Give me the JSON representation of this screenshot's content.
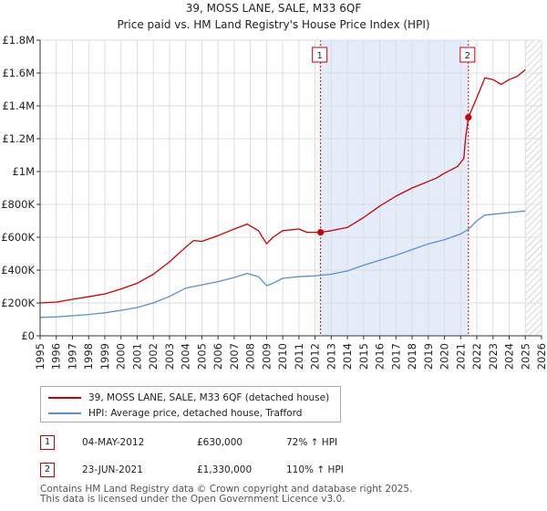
{
  "chart_data": {
    "type": "line",
    "title": "39, MOSS LANE, SALE, M33 6QF",
    "subtitle": "Price paid vs. HM Land Registry's House Price Index (HPI)",
    "xlim": [
      1995,
      2026
    ],
    "ylim": [
      0,
      1800000
    ],
    "xticks": [
      "1995",
      "1996",
      "1997",
      "1998",
      "1999",
      "2000",
      "2001",
      "2002",
      "2003",
      "2004",
      "2005",
      "2006",
      "2007",
      "2008",
      "2009",
      "2010",
      "2011",
      "2012",
      "2013",
      "2014",
      "2015",
      "2016",
      "2017",
      "2018",
      "2019",
      "2020",
      "2021",
      "2022",
      "2023",
      "2024",
      "2025",
      "2026"
    ],
    "yticks": [
      {
        "value": 0,
        "label": "£0"
      },
      {
        "value": 200000,
        "label": "£200K"
      },
      {
        "value": 400000,
        "label": "£400K"
      },
      {
        "value": 600000,
        "label": "£600K"
      },
      {
        "value": 800000,
        "label": "£800K"
      },
      {
        "value": 1000000,
        "label": "£1M"
      },
      {
        "value": 1200000,
        "label": "£1.2M"
      },
      {
        "value": 1400000,
        "label": "£1.4M"
      },
      {
        "value": 1600000,
        "label": "£1.6M"
      },
      {
        "value": 1800000,
        "label": "£1.8M"
      }
    ],
    "grid": true,
    "shaded_range": [
      2012.34,
      2021.48
    ],
    "hatched_from": 2025.0,
    "series": [
      {
        "name": "39, MOSS LANE, SALE, M33 6QF (detached house)",
        "color": "#cc0000",
        "x": [
          1995,
          1996,
          1997,
          1998,
          1999,
          2000,
          2001,
          2002,
          2003,
          2004,
          2004.5,
          2005,
          2006,
          2007,
          2007.8,
          2008.5,
          2009.0,
          2009.4,
          2010,
          2011,
          2011.5,
          2012.34,
          2013,
          2014,
          2015,
          2016,
          2017,
          2018,
          2019,
          2019.5,
          2020,
          2020.8,
          2021.2,
          2021.3,
          2021.48,
          2022,
          2022.5,
          2023,
          2023.5,
          2024,
          2024.5,
          2025.0
        ],
        "y": [
          200000,
          205000,
          222000,
          238000,
          255000,
          285000,
          320000,
          375000,
          450000,
          540000,
          580000,
          575000,
          610000,
          650000,
          680000,
          640000,
          560000,
          600000,
          640000,
          650000,
          630000,
          630000,
          640000,
          660000,
          720000,
          790000,
          850000,
          900000,
          940000,
          960000,
          990000,
          1030000,
          1080000,
          1200000,
          1330000,
          1450000,
          1570000,
          1560000,
          1530000,
          1560000,
          1580000,
          1620000
        ]
      },
      {
        "name": "HPI: Average price, detached house, Trafford",
        "color": "#5b8fd4",
        "x": [
          1995,
          1996,
          1997,
          1998,
          1999,
          2000,
          2001,
          2002,
          2003,
          2004,
          2005,
          2006,
          2007,
          2007.8,
          2008.5,
          2009.0,
          2009.4,
          2010,
          2011,
          2012,
          2013,
          2014,
          2015,
          2016,
          2017,
          2018,
          2019,
          2020,
          2021,
          2021.5,
          2022,
          2022.5,
          2023,
          2024,
          2025.0
        ],
        "y": [
          112000,
          115000,
          122000,
          130000,
          140000,
          155000,
          172000,
          200000,
          240000,
          290000,
          310000,
          330000,
          355000,
          380000,
          360000,
          305000,
          320000,
          350000,
          360000,
          365000,
          375000,
          395000,
          430000,
          460000,
          490000,
          525000,
          560000,
          585000,
          620000,
          650000,
          700000,
          735000,
          740000,
          750000,
          760000
        ]
      }
    ],
    "markers": [
      {
        "id": "1",
        "x": 2012.34,
        "y": 630000
      },
      {
        "id": "2",
        "x": 2021.48,
        "y": 1330000
      }
    ]
  },
  "legend": {
    "items": [
      {
        "label": "39, MOSS LANE, SALE, M33 6QF (detached house)",
        "color": "#cc0000"
      },
      {
        "label": "HPI: Average price, detached house, Trafford",
        "color": "#5b8fd4"
      }
    ]
  },
  "events": [
    {
      "id": "1",
      "date": "04-MAY-2012",
      "price": "£630,000",
      "hpi": "72% ↑ HPI"
    },
    {
      "id": "2",
      "date": "23-JUN-2021",
      "price": "£1,330,000",
      "hpi": "110% ↑ HPI"
    }
  ],
  "footer": {
    "line1": "Contains HM Land Registry data © Crown copyright and database right 2025.",
    "line2": "This data is licensed under the Open Government Licence v3.0."
  }
}
